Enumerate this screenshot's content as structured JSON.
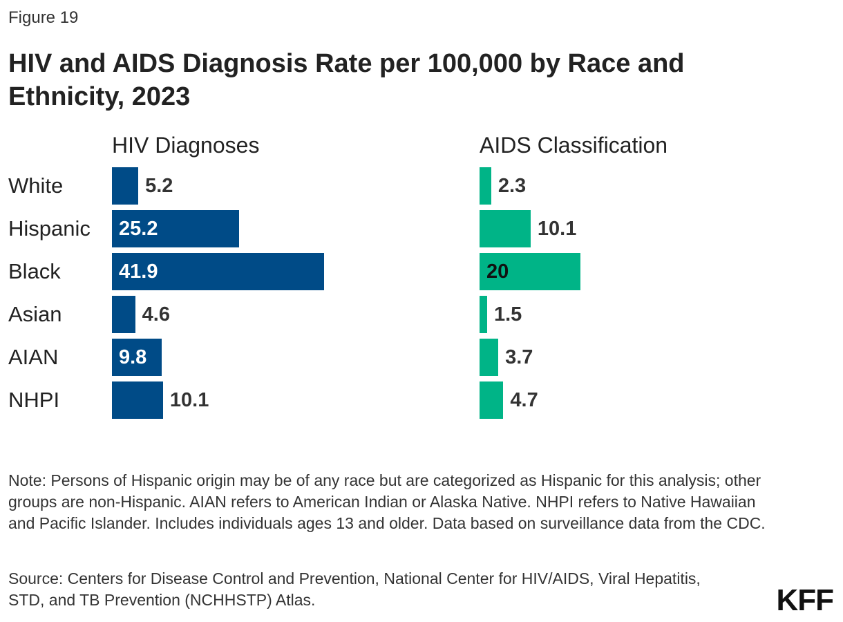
{
  "figure_label": "Figure 19",
  "chart_data": [
    {
      "type": "bar",
      "orientation": "horizontal",
      "title": "HIV and AIDS Diagnosis Rate per 100,000 by Race and Ethnicity, 2023",
      "panel_title": "HIV Diagnoses",
      "categories": [
        "White",
        "Hispanic",
        "Black",
        "Asian",
        "AIAN",
        "NHPI"
      ],
      "values": [
        5.2,
        25.2,
        41.9,
        4.6,
        9.8,
        10.1
      ],
      "color": "#004b87"
    },
    {
      "type": "bar",
      "orientation": "horizontal",
      "panel_title": "AIDS Classification",
      "categories": [
        "White",
        "Hispanic",
        "Black",
        "Asian",
        "AIAN",
        "NHPI"
      ],
      "values": [
        2.3,
        10.1,
        20,
        1.5,
        3.7,
        4.7
      ],
      "color": "#00b487"
    }
  ],
  "title": "HIV and AIDS Diagnosis Rate per 100,000 by Race and Ethnicity, 2023",
  "note": "Note: Persons of Hispanic origin may be of any race but are categorized as Hispanic for this analysis; other groups are non-Hispanic. AIAN refers to American Indian or Alaska Native. NHPI refers to Native Hawaiian and Pacific Islander. Includes individuals ages 13 and older. Data based on surveillance data from the CDC.",
  "source": "Source: Centers for Disease Control and Prevention, National Center for HIV/AIDS, Viral Hepatitis, STD, and TB Prevention (NCHHSTP) Atlas.",
  "logo": "KFF"
}
